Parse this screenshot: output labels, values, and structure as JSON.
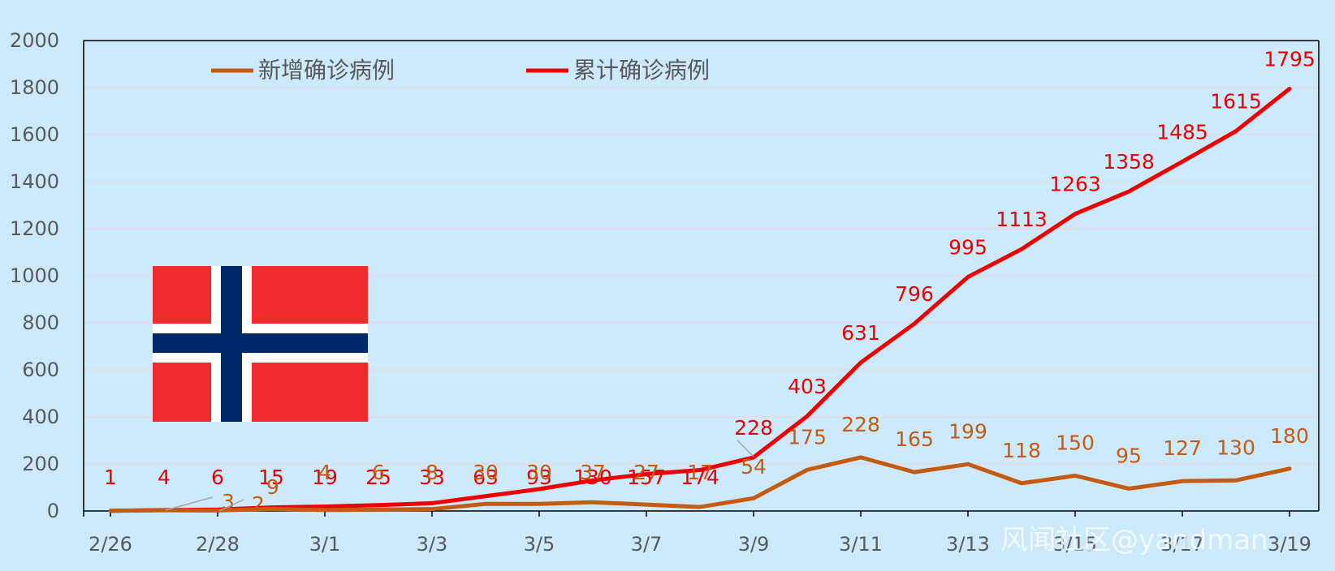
{
  "colors": {
    "background": "#cdeafd",
    "new_series": "#c55a11",
    "total_series": "#ee0000",
    "flag_red": "#ef2b2d",
    "flag_blue": "#002868",
    "flag_white": "#ffffff"
  },
  "flag": {
    "icon": "norway-flag-icon",
    "name": "Norway"
  },
  "watermark": "风闻社区@yandman",
  "chart_data": {
    "type": "line",
    "title": "",
    "xlabel": "",
    "ylabel": "",
    "ylim": [
      0,
      2000
    ],
    "yticks": [
      0,
      200,
      400,
      600,
      800,
      1000,
      1200,
      1400,
      1600,
      1800,
      2000
    ],
    "x": [
      "2/26",
      "2/27",
      "2/28",
      "2/29",
      "3/1",
      "3/2",
      "3/3",
      "3/4",
      "3/5",
      "3/6",
      "3/7",
      "3/8",
      "3/9",
      "3/10",
      "3/11",
      "3/12",
      "3/13",
      "3/14",
      "3/15",
      "3/16",
      "3/17",
      "3/18",
      "3/19"
    ],
    "x_tick_labels": [
      "2/26",
      "2/28",
      "3/1",
      "3/3",
      "3/5",
      "3/7",
      "3/9",
      "3/11",
      "3/13",
      "3/15",
      "3/17",
      "3/19"
    ],
    "grid": true,
    "legend_position": "top-left",
    "series": [
      {
        "name": "新增确诊病例",
        "values": [
          1,
          3,
          2,
          9,
          4,
          6,
          8,
          30,
          30,
          37,
          27,
          17,
          54,
          175,
          228,
          165,
          199,
          118,
          150,
          95,
          127,
          130,
          180
        ]
      },
      {
        "name": "累计确诊病例",
        "values": [
          1,
          4,
          6,
          15,
          19,
          25,
          33,
          63,
          93,
          130,
          157,
          174,
          228,
          403,
          631,
          796,
          995,
          1113,
          1263,
          1358,
          1485,
          1615,
          1795
        ]
      }
    ]
  }
}
